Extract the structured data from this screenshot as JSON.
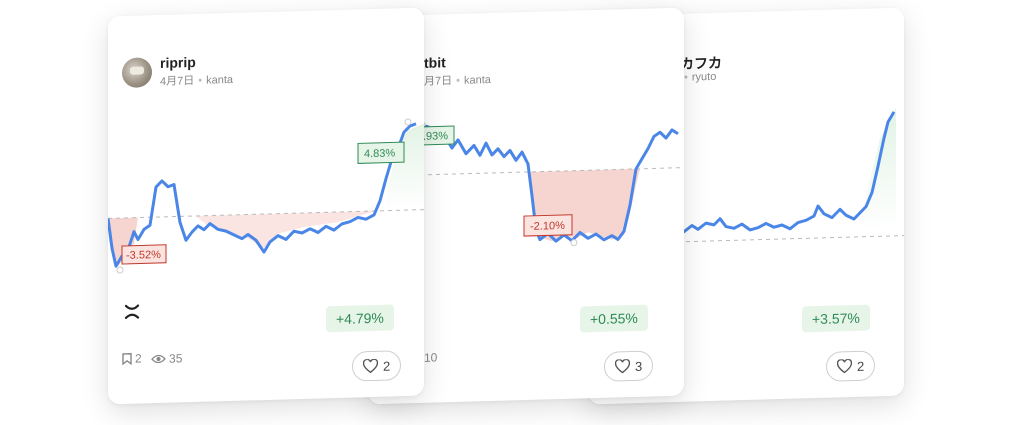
{
  "cards": [
    {
      "title": "riprip",
      "date": "4月7日",
      "author": "kanta",
      "change": "+4.79%",
      "low_label": "-3.52%",
      "high_label": "4.83%",
      "icon": "x-icon",
      "bookmarks": "2",
      "views": "35",
      "likes": "2"
    },
    {
      "title": "tbit",
      "date": "月7日",
      "author": "kanta",
      "change": "+0.55%",
      "low_label": "-2.10%",
      "high_label": ".93%",
      "views": "10",
      "likes": "3"
    },
    {
      "title": "カフカ",
      "author": "ryuto",
      "change": "+3.57%",
      "likes": "2"
    }
  ],
  "colors": {
    "line": "#4a86e8",
    "gain_fill": "#dff1e2",
    "loss_fill": "#f3c6c0",
    "gain_text": "#2e8b57",
    "loss_text": "#c0392b"
  }
}
